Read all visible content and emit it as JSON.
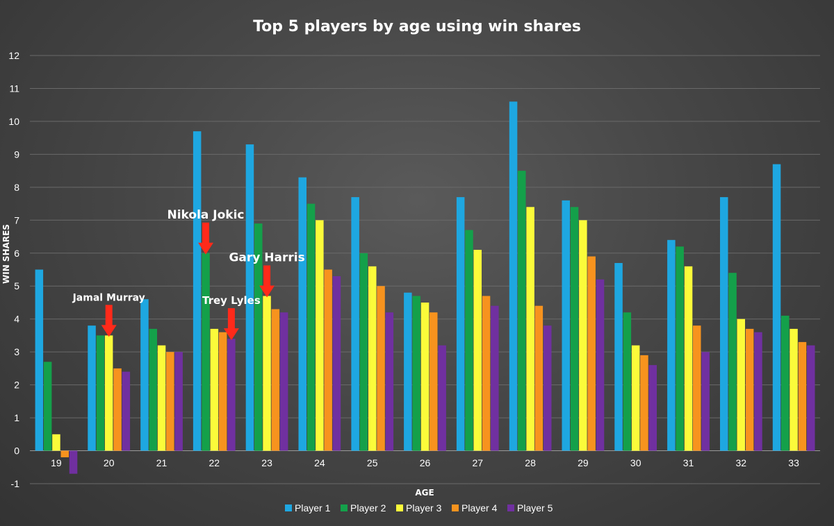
{
  "chart_data": {
    "type": "bar",
    "title": "Top 5 players by age using win shares",
    "xlabel": "AGE",
    "ylabel": "WIN SHARES",
    "ylim": [
      -1,
      12
    ],
    "yticks": [
      -1,
      0,
      1,
      2,
      3,
      4,
      5,
      6,
      7,
      8,
      9,
      10,
      11,
      12
    ],
    "grid": true,
    "legend": "bottom",
    "categories": [
      "19",
      "20",
      "21",
      "22",
      "23",
      "24",
      "25",
      "26",
      "27",
      "28",
      "29",
      "30",
      "31",
      "32",
      "33"
    ],
    "series": [
      {
        "name": "Player 1",
        "color": "#1ea7e1",
        "values": [
          5.5,
          3.8,
          4.6,
          9.7,
          9.3,
          8.3,
          7.7,
          4.8,
          7.7,
          10.6,
          7.6,
          5.7,
          6.4,
          7.7,
          8.7
        ]
      },
      {
        "name": "Player 2",
        "color": "#14a04a",
        "values": [
          2.7,
          3.5,
          3.7,
          6.0,
          6.9,
          7.5,
          6.0,
          4.7,
          6.7,
          8.5,
          7.4,
          4.2,
          6.2,
          5.4,
          4.1
        ]
      },
      {
        "name": "Player 3",
        "color": "#fbfb3a",
        "values": [
          0.5,
          3.5,
          3.2,
          3.7,
          4.7,
          7.0,
          5.6,
          4.5,
          6.1,
          7.4,
          7.0,
          3.2,
          5.6,
          4.0,
          3.7
        ]
      },
      {
        "name": "Player 4",
        "color": "#f7931e",
        "values": [
          -0.2,
          2.5,
          3.0,
          3.6,
          4.3,
          5.5,
          5.0,
          4.2,
          4.7,
          4.4,
          5.9,
          2.9,
          3.8,
          3.7,
          3.3
        ]
      },
      {
        "name": "Player 5",
        "color": "#7030a0",
        "values": [
          -0.7,
          2.4,
          3.0,
          3.4,
          4.2,
          5.3,
          4.2,
          3.2,
          4.4,
          3.8,
          5.2,
          2.6,
          3.0,
          3.6,
          3.2
        ]
      }
    ],
    "annotations": [
      {
        "text": "Jamal Murray",
        "category": "20",
        "series": "Player 3",
        "arrow_color": "#ff2a1a"
      },
      {
        "text": "Nikola Jokic",
        "category": "22",
        "series": "Player 2",
        "arrow_color": "#ff2a1a"
      },
      {
        "text": "Trey Lyles",
        "category": "22",
        "series": "Player 5",
        "arrow_color": "#ff2a1a"
      },
      {
        "text": "Gary Harris",
        "category": "23",
        "series": "Player 3",
        "arrow_color": "#ff2a1a"
      }
    ]
  }
}
